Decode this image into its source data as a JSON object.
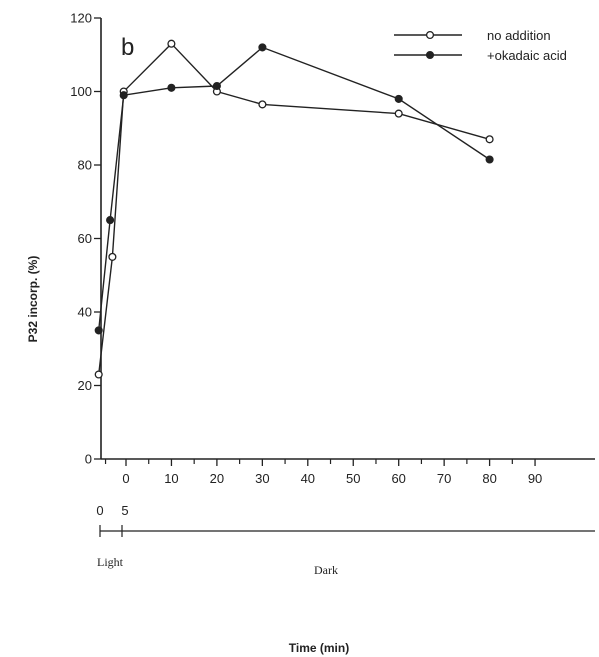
{
  "chart_data": {
    "type": "line",
    "panel_label": "b",
    "xlabel": "Time (min)",
    "ylabel": "P32 incorp. (%)",
    "ylim": [
      0,
      120
    ],
    "y_ticks": [
      0,
      20,
      40,
      60,
      80,
      100,
      120
    ],
    "xlim": [
      -6,
      96
    ],
    "x_ticks": [
      0,
      10,
      20,
      30,
      40,
      50,
      60,
      70,
      80,
      90
    ],
    "legend_position": "top-right",
    "grid": false,
    "series": [
      {
        "name": "no addition",
        "marker": "open-circle",
        "color": "#222222",
        "x": [
          -6,
          -3,
          -0.5,
          10,
          20,
          30,
          60,
          80
        ],
        "y": [
          23,
          55,
          100,
          113,
          100,
          96.5,
          94,
          87
        ]
      },
      {
        "name": "+okadaic acid",
        "marker": "filled-circle",
        "color": "#222222",
        "x": [
          -6,
          -3.5,
          -0.5,
          10,
          20,
          30,
          60,
          80
        ],
        "y": [
          35,
          65,
          99,
          101,
          101.5,
          112,
          98,
          81.5
        ]
      }
    ],
    "phase_axis": {
      "ticks": [
        "0",
        "5"
      ],
      "labels": [
        "Light",
        "Dark"
      ]
    }
  }
}
